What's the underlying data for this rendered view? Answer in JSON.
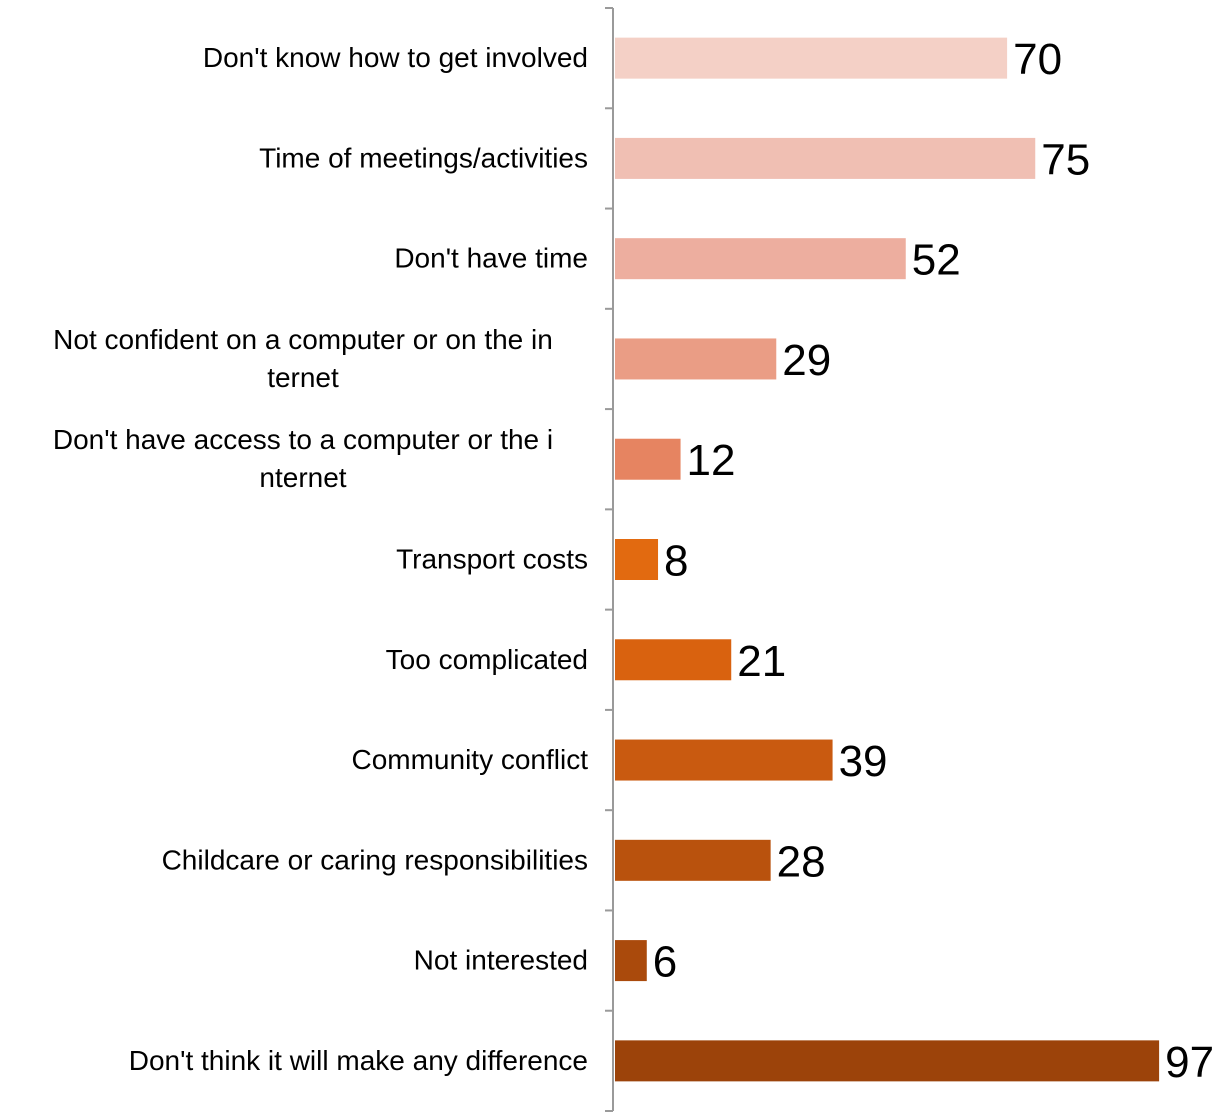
{
  "chart_data": {
    "type": "bar",
    "orientation": "horizontal",
    "categories": [
      [
        "Don't know how to get involved"
      ],
      [
        "Time of meetings/activities"
      ],
      [
        "Don't have time"
      ],
      [
        "Not confident on a computer or on the in",
        "ternet"
      ],
      [
        "Don't have access to a computer or the i",
        "nternet"
      ],
      [
        "Transport costs"
      ],
      [
        "Too complicated"
      ],
      [
        "Community conflict"
      ],
      [
        "Childcare or caring responsibilities"
      ],
      [
        "Not interested"
      ],
      [
        "Don't think it will make any difference"
      ]
    ],
    "values": [
      70,
      75,
      52,
      29,
      12,
      8,
      21,
      39,
      28,
      6,
      97
    ],
    "colors": [
      "#F4D0C6",
      "#F0BFB3",
      "#EDAE9F",
      "#EA9D85",
      "#E68461",
      "#E26A10",
      "#D9620F",
      "#C95A10",
      "#B9520D",
      "#AA4A0C",
      "#9C430A"
    ],
    "xlim": [
      0,
      100
    ],
    "grid": false,
    "legend": "none",
    "title": "",
    "xlabel": "",
    "ylabel": ""
  }
}
